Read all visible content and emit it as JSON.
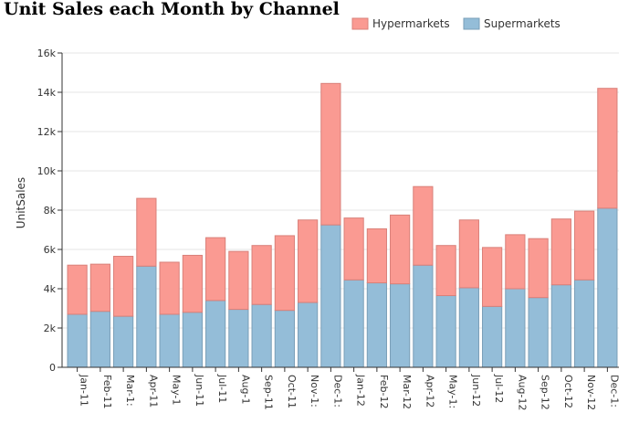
{
  "chart_data": {
    "type": "bar",
    "stacked": true,
    "title": "Unit Sales each Month by Channel",
    "xlabel": "",
    "ylabel": "UnitSales",
    "ylim": [
      0,
      16000
    ],
    "yticks": [
      0,
      2000,
      4000,
      6000,
      8000,
      10000,
      12000,
      14000,
      16000
    ],
    "ytick_labels": [
      "0",
      "2k",
      "4k",
      "6k",
      "8k",
      "10k",
      "12k",
      "14k",
      "16k"
    ],
    "grid": true,
    "legend_position": "top-right",
    "categories": [
      "Jan-11",
      "Feb-11",
      "Mar-11",
      "Apr-11",
      "May-11",
      "Jun-11",
      "Jul-11",
      "Aug-11",
      "Sep-11",
      "Oct-11",
      "Nov-11",
      "Dec-11",
      "Jan-12",
      "Feb-12",
      "Mar-12",
      "Apr-12",
      "May-12",
      "Jun-12",
      "Jul-12",
      "Aug-12",
      "Sep-12",
      "Oct-12",
      "Nov-12",
      "Dec-12"
    ],
    "category_labels": [
      "Jan-11",
      "Feb-11",
      "Mar-1:",
      "Apr-11",
      "May-1",
      "Jun-11",
      "Jul-11",
      "Aug-1",
      "Sep-11",
      "Oct-11",
      "Nov-1:",
      "Dec-1:",
      "Jan-12",
      "Feb-12",
      "Mar-12",
      "Apr-12",
      "May-1:",
      "Jun-12",
      "Jul-12",
      "Aug-12",
      "Sep-12",
      "Oct-12",
      "Nov-12",
      "Dec-1:"
    ],
    "series": [
      {
        "name": "Supermarkets",
        "color": "#94bdd8",
        "stroke": "#7a9fb8",
        "values": [
          2700,
          2850,
          2600,
          5150,
          2700,
          2800,
          3400,
          2950,
          3200,
          2900,
          3300,
          7250,
          4450,
          4300,
          4250,
          5200,
          3650,
          4050,
          3100,
          4000,
          3550,
          4200,
          4450,
          8100
        ]
      },
      {
        "name": "Hypermarkets",
        "color": "#fa9a92",
        "stroke": "#d98079",
        "values": [
          2500,
          2400,
          3050,
          3450,
          2650,
          2900,
          3200,
          2950,
          3000,
          3800,
          4200,
          7200,
          3150,
          2750,
          3500,
          4000,
          2550,
          3450,
          3000,
          2750,
          3000,
          3350,
          3500,
          6100
        ]
      }
    ]
  }
}
